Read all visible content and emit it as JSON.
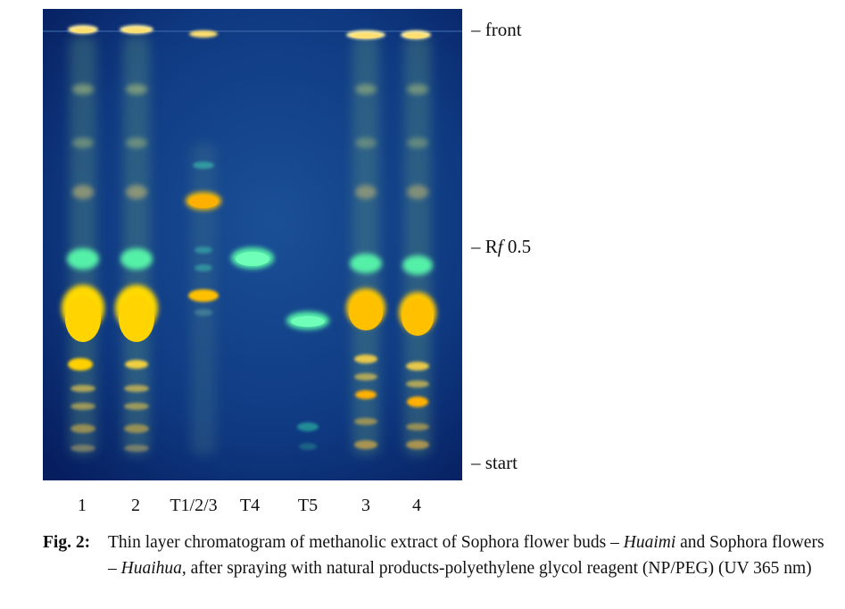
{
  "plate_labels": {
    "front": "– front",
    "rf_prefix": "– R",
    "rf_f": "f",
    "rf_value": " 0.5",
    "start": "– start"
  },
  "lanes": [
    {
      "label": "1"
    },
    {
      "label": "2"
    },
    {
      "label": "T1/2/3"
    },
    {
      "label": "T4"
    },
    {
      "label": "T5"
    },
    {
      "label": "3"
    },
    {
      "label": "4"
    }
  ],
  "caption": {
    "label": "Fig. 2:",
    "text_1": "Thin layer chromatogram of methanolic extract of Sophora flower buds – ",
    "italic_1": "Huaimi",
    "text_2": " and Sophora flowers – ",
    "italic_2": "Huaihua",
    "text_3": ", after spraying with natural products-polyethylene glycol reagent (NP/PEG) (UV 365 nm)"
  },
  "colors": {
    "plate_background": "#0a2f7a",
    "yellow_zone": "#ffd400",
    "orange_zone": "#ffb000",
    "green_zone": "#3fe38f",
    "cyan_zone": "#2ec8b0"
  }
}
